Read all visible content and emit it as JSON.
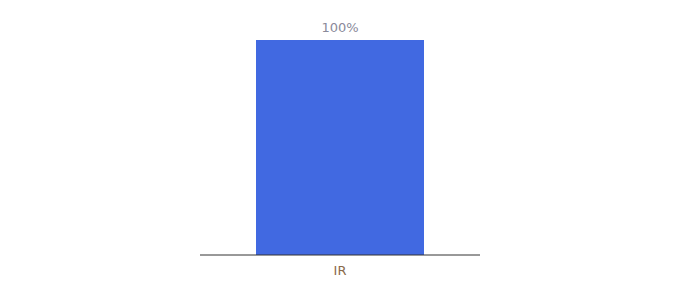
{
  "chart_data": {
    "type": "bar",
    "categories": [
      "IR"
    ],
    "values": [
      100
    ],
    "value_labels": [
      "100%"
    ],
    "color": "#4169e1",
    "ylim": [
      0,
      100
    ],
    "data_labels": true,
    "tick_labels": "x",
    "grid": false
  }
}
